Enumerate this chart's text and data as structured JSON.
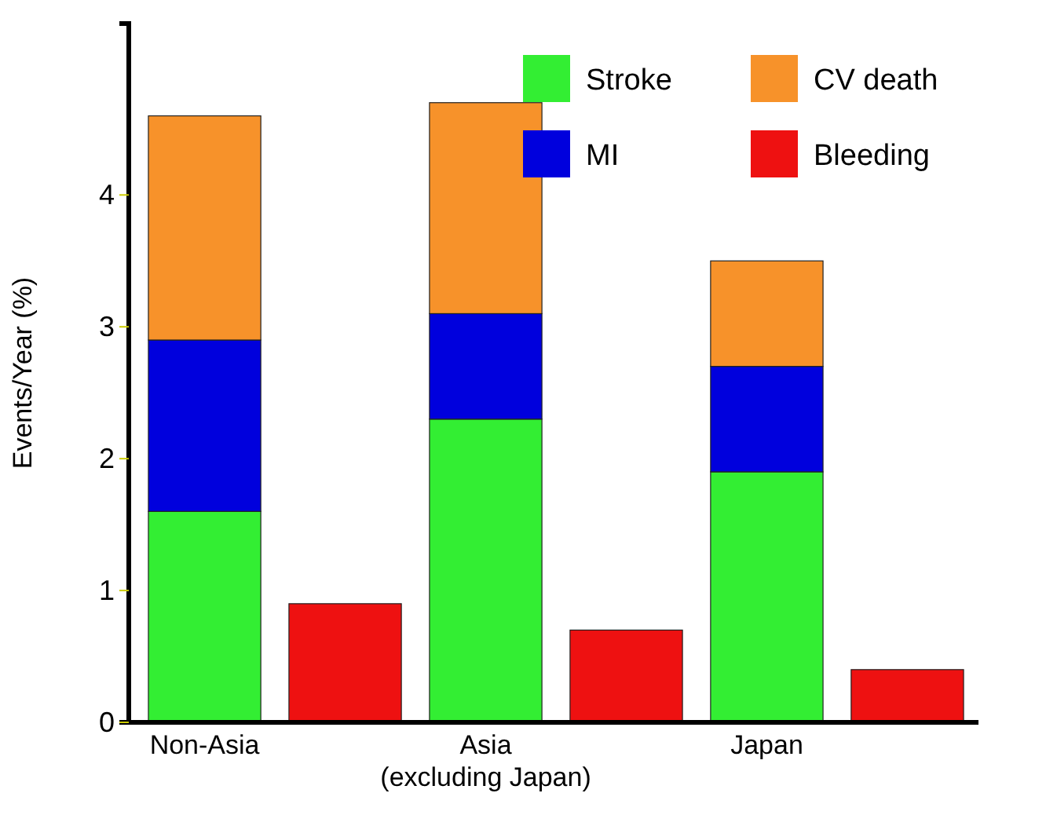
{
  "chart_data": {
    "type": "bar",
    "ylabel": "Events/Year (%)",
    "categories": [
      "Non-Asia",
      null,
      "Asia (excluding Japan)",
      null,
      "Japan",
      null
    ],
    "stacked": true,
    "ylim": [
      0,
      5.3
    ],
    "yticks": [
      0,
      1,
      2,
      3,
      4
    ],
    "legend": "top right",
    "grid": false,
    "series": [
      {
        "name": "Stroke",
        "color": "#33ee33",
        "values": [
          1.6,
          null,
          2.3,
          null,
          1.9,
          null
        ]
      },
      {
        "name": "MI",
        "color": "#0000dd",
        "values": [
          1.3,
          null,
          0.8,
          null,
          0.8,
          null
        ]
      },
      {
        "name": "CV death",
        "color": "#f7922a",
        "values": [
          1.7,
          null,
          1.6,
          null,
          0.8,
          null
        ]
      },
      {
        "name": "Bleeding",
        "color": "#ee1111",
        "values": [
          null,
          0.9,
          null,
          0.7,
          null,
          0.4
        ]
      }
    ]
  }
}
